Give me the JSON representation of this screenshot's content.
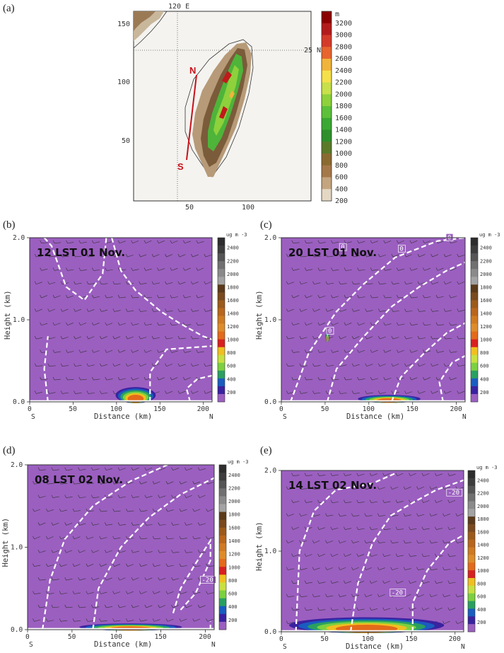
{
  "panels": {
    "a": "(a)",
    "b": "(b)",
    "c": "(c)",
    "d": "(d)",
    "e": "(e)"
  },
  "chart_data": [
    {
      "id": "a",
      "type": "heatmap",
      "description_title": "",
      "x_ticks": [
        "50",
        "100"
      ],
      "y_ticks": [
        "50",
        "100",
        "150"
      ],
      "lon_label": "120 E",
      "lat_label": "25 N",
      "transect": {
        "start": "S",
        "end": "N"
      },
      "colorbar": {
        "unit": "m",
        "labels": [
          "3200",
          "3000",
          "2800",
          "2600",
          "2400",
          "2200",
          "2000",
          "1800",
          "1600",
          "1400",
          "1200",
          "1000",
          "800",
          "600",
          "400",
          "200"
        ],
        "colors": [
          "#8b0000",
          "#b31b1b",
          "#d43a2a",
          "#e8642e",
          "#f0b43c",
          "#f5e04a",
          "#c8e04a",
          "#8ed13c",
          "#5cc03a",
          "#3aa832",
          "#2e8f2b",
          "#5a7a2a",
          "#8a6a30",
          "#a5784a",
          "#c4a580",
          "#e4d8c4"
        ]
      }
    },
    {
      "id": "b",
      "type": "heatmap",
      "time_label": "12 LST 01 Nov.",
      "xlabel": "Distance (km)",
      "ylabel": "Height (km)",
      "x_ticks": [
        "0",
        "50",
        "100",
        "150",
        "200"
      ],
      "y_ticks": [
        "0.0",
        "1.0",
        "2.0"
      ],
      "x_ends": [
        "S",
        "N"
      ],
      "xlim": [
        0,
        210
      ],
      "ylim": [
        0,
        2.0
      ],
      "isotherm_labels": [],
      "colorbar": {
        "unit": "ug m -3",
        "labels": [
          "2400",
          "2200",
          "2000",
          "1800",
          "1600",
          "1400",
          "1200",
          "1000",
          "800",
          "600",
          "400",
          "200"
        ]
      }
    },
    {
      "id": "c",
      "type": "heatmap",
      "time_label": "20 LST 01 Nov.",
      "xlabel": "Distance (km)",
      "ylabel": "Height (km)",
      "x_ticks": [
        "0",
        "50",
        "100",
        "150",
        "200"
      ],
      "y_ticks": [
        "0.0",
        "1.0",
        "2.0"
      ],
      "x_ends": [
        "S",
        "N"
      ],
      "xlim": [
        0,
        210
      ],
      "ylim": [
        0,
        2.0
      ],
      "isotherm_labels": [
        "0",
        "0",
        "0",
        "0"
      ],
      "colorbar": {
        "unit": "ug m -3",
        "labels": [
          "2400",
          "2200",
          "2000",
          "1800",
          "1600",
          "1400",
          "1200",
          "1000",
          "800",
          "600",
          "400",
          "200"
        ]
      }
    },
    {
      "id": "d",
      "type": "heatmap",
      "time_label": "08 LST 02 Nov.",
      "xlabel": "Distance (km)",
      "ylabel": "Height (km)",
      "x_ticks": [
        "0",
        "50",
        "100",
        "150",
        "200"
      ],
      "y_ticks": [
        "0.0",
        "1.0",
        "2.0"
      ],
      "x_ends": [
        "S",
        "N"
      ],
      "xlim": [
        0,
        210
      ],
      "ylim": [
        0,
        2.0
      ],
      "isotherm_labels": [
        "-20"
      ],
      "colorbar": {
        "unit": "ug m -3",
        "labels": [
          "2400",
          "2200",
          "2000",
          "1800",
          "1600",
          "1400",
          "1200",
          "1000",
          "800",
          "600",
          "400",
          "200"
        ]
      }
    },
    {
      "id": "e",
      "type": "heatmap",
      "time_label": "14 LST 02 Nov.",
      "xlabel": "Distance (km)",
      "ylabel": "Height (km)",
      "x_ticks": [
        "0",
        "50",
        "100",
        "150",
        "200"
      ],
      "y_ticks": [
        "0.0",
        "1.0",
        "2.0"
      ],
      "x_ends": [
        "S",
        "N"
      ],
      "xlim": [
        0,
        210
      ],
      "ylim": [
        0,
        2.0
      ],
      "isotherm_labels": [
        "-20",
        "-20"
      ],
      "colorbar": {
        "unit": "ug m -3",
        "labels": [
          "2400",
          "2200",
          "2000",
          "1800",
          "1600",
          "1400",
          "1200",
          "1000",
          "800",
          "600",
          "400",
          "200"
        ]
      }
    }
  ],
  "colors": {
    "background_field": "#9b5fc0",
    "cb_ramp": [
      "#2d2d2d",
      "#3d3d3d",
      "#555555",
      "#707070",
      "#8a8a8a",
      "#a3a3a3",
      "#5a3a1a",
      "#7a4a1e",
      "#9c5a1a",
      "#b8661c",
      "#cf7a22",
      "#de8c2a",
      "#e36a1a",
      "#d82020",
      "#f0c020",
      "#c8e040",
      "#7cd040",
      "#2aa060",
      "#1a5cc0",
      "#3a22a0",
      "#9b5fc0"
    ]
  }
}
